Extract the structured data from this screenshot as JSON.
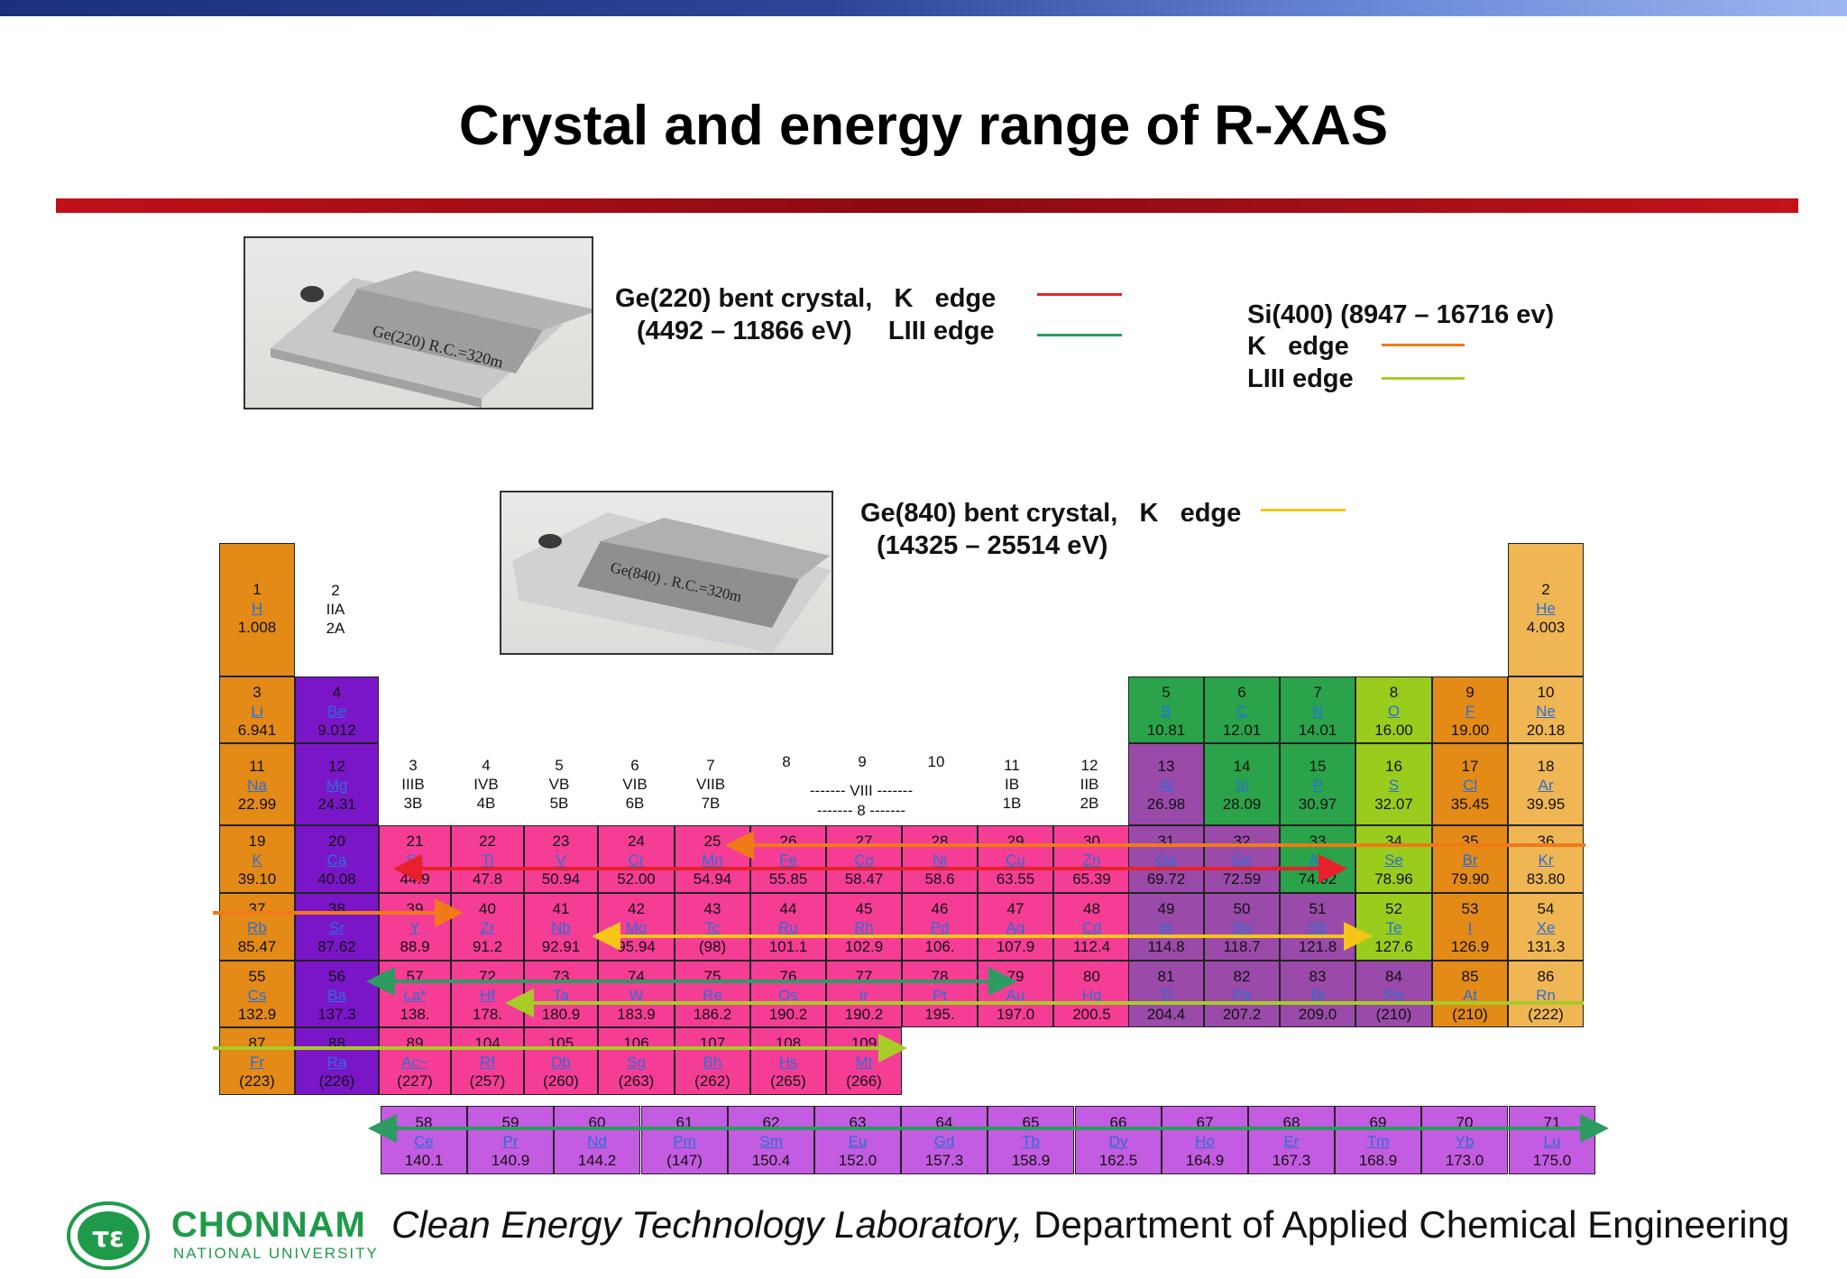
{
  "slide": {
    "title": "Crystal and energy range of R-XAS"
  },
  "crystals": {
    "ge220": {
      "line1": "Ge(220) bent crystal,   K   edge",
      "line2": "(4492 – 11866 eV)     LIII edge",
      "photo_text": "Ge(220)  R.C.=320m"
    },
    "ge840": {
      "line1": "Ge(840) bent crystal,   K   edge",
      "line2": "(14325 – 25514 eV)",
      "photo_text": "Ge(840) . R.C.=320m"
    },
    "si400": {
      "line1": "Si(400) (8947 – 16716 ev)",
      "line2": "K   edge",
      "line3": "LIII edge"
    }
  },
  "legend_colors": {
    "ge220_k": "#e8202a",
    "ge220_liii": "#2e9b62",
    "si400_k": "#f07a18",
    "si400_liii": "#a8cc26",
    "ge840_k": "#f5c518"
  },
  "group_headers": {
    "g2": [
      "2",
      "IIA",
      "2A"
    ],
    "g3": [
      "3",
      "IIIB",
      "3B"
    ],
    "g4": [
      "4",
      "IVB",
      "4B"
    ],
    "g5": [
      "5",
      "VB",
      "5B"
    ],
    "g6": [
      "6",
      "VIB",
      "6B"
    ],
    "g7": [
      "7",
      "VIIB",
      "7B"
    ],
    "g8": "8",
    "g9": "9",
    "g10": "10",
    "viii_a": "------- VIII -------",
    "viii_b": "------- 8 -------",
    "g11": [
      "11",
      "IB",
      "1B"
    ],
    "g12": [
      "12",
      "IIB",
      "2B"
    ]
  },
  "elements": [
    {
      "n": "1",
      "s": "H",
      "m": "1.008",
      "c": "orange",
      "col": 1,
      "row": 1
    },
    {
      "n": "2",
      "s": "He",
      "m": "4.003",
      "c": "lightorange",
      "col": 18,
      "row": 1
    },
    {
      "n": "3",
      "s": "Li",
      "m": "6.941",
      "c": "orange",
      "col": 1,
      "row": 2
    },
    {
      "n": "4",
      "s": "Be",
      "m": "9.012",
      "c": "purple",
      "col": 2,
      "row": 2
    },
    {
      "n": "5",
      "s": "B",
      "m": "10.81",
      "c": "green",
      "col": 13,
      "row": 2
    },
    {
      "n": "6",
      "s": "C",
      "m": "12.01",
      "c": "green",
      "col": 14,
      "row": 2
    },
    {
      "n": "7",
      "s": "N",
      "m": "14.01",
      "c": "green",
      "col": 15,
      "row": 2
    },
    {
      "n": "8",
      "s": "O",
      "m": "16.00",
      "c": "lime",
      "col": 16,
      "row": 2
    },
    {
      "n": "9",
      "s": "F",
      "m": "19.00",
      "c": "orange",
      "col": 17,
      "row": 2
    },
    {
      "n": "10",
      "s": "Ne",
      "m": "20.18",
      "c": "lightorange",
      "col": 18,
      "row": 2
    },
    {
      "n": "11",
      "s": "Na",
      "m": "22.99",
      "c": "orange",
      "col": 1,
      "row": 3
    },
    {
      "n": "12",
      "s": "Mg",
      "m": "24.31",
      "c": "purple",
      "col": 2,
      "row": 3
    },
    {
      "n": "13",
      "s": "Al",
      "m": "26.98",
      "c": "mauve",
      "col": 13,
      "row": 3
    },
    {
      "n": "14",
      "s": "Si",
      "m": "28.09",
      "c": "green",
      "col": 14,
      "row": 3
    },
    {
      "n": "15",
      "s": "P",
      "m": "30.97",
      "c": "green",
      "col": 15,
      "row": 3
    },
    {
      "n": "16",
      "s": "S",
      "m": "32.07",
      "c": "lime",
      "col": 16,
      "row": 3
    },
    {
      "n": "17",
      "s": "Cl",
      "m": "35.45",
      "c": "orange",
      "col": 17,
      "row": 3
    },
    {
      "n": "18",
      "s": "Ar",
      "m": "39.95",
      "c": "lightorange",
      "col": 18,
      "row": 3
    },
    {
      "n": "19",
      "s": "K",
      "m": "39.10",
      "c": "orange",
      "col": 1,
      "row": 4
    },
    {
      "n": "20",
      "s": "Ca",
      "m": "40.08",
      "c": "purple",
      "col": 2,
      "row": 4
    },
    {
      "n": "21",
      "s": "Sc",
      "m": "44.9",
      "c": "pink",
      "col": 3,
      "row": 4
    },
    {
      "n": "22",
      "s": "Ti",
      "m": "47.8",
      "c": "pink",
      "col": 4,
      "row": 4
    },
    {
      "n": "23",
      "s": "V",
      "m": "50.94",
      "c": "pink",
      "col": 5,
      "row": 4
    },
    {
      "n": "24",
      "s": "Cr",
      "m": "52.00",
      "c": "pink",
      "col": 6,
      "row": 4
    },
    {
      "n": "25",
      "s": "Mn",
      "m": "54.94",
      "c": "pink",
      "col": 7,
      "row": 4
    },
    {
      "n": "26",
      "s": "Fe",
      "m": "55.85",
      "c": "pink",
      "col": 8,
      "row": 4
    },
    {
      "n": "27",
      "s": "Co",
      "m": "58.47",
      "c": "pink",
      "col": 9,
      "row": 4
    },
    {
      "n": "28",
      "s": "Ni",
      "m": "58.6",
      "c": "pink",
      "col": 10,
      "row": 4
    },
    {
      "n": "29",
      "s": "Cu",
      "m": "63.55",
      "c": "pink",
      "col": 11,
      "row": 4
    },
    {
      "n": "30",
      "s": "Zn",
      "m": "65.39",
      "c": "pink",
      "col": 12,
      "row": 4
    },
    {
      "n": "31",
      "s": "Ga",
      "m": "69.72",
      "c": "mauve",
      "col": 13,
      "row": 4
    },
    {
      "n": "32",
      "s": "Ge",
      "m": "72.59",
      "c": "mauve",
      "col": 14,
      "row": 4
    },
    {
      "n": "33",
      "s": "As",
      "m": "74.92",
      "c": "green",
      "col": 15,
      "row": 4
    },
    {
      "n": "34",
      "s": "Se",
      "m": "78.96",
      "c": "lime",
      "col": 16,
      "row": 4
    },
    {
      "n": "35",
      "s": "Br",
      "m": "79.90",
      "c": "orange",
      "col": 17,
      "row": 4
    },
    {
      "n": "36",
      "s": "Kr",
      "m": "83.80",
      "c": "lightorange",
      "col": 18,
      "row": 4
    },
    {
      "n": "37",
      "s": "Rb",
      "m": "85.47",
      "c": "orange",
      "col": 1,
      "row": 5
    },
    {
      "n": "38",
      "s": "Sr",
      "m": "87.62",
      "c": "purple",
      "col": 2,
      "row": 5
    },
    {
      "n": "39",
      "s": "Y",
      "m": "88.9",
      "c": "pink",
      "col": 3,
      "row": 5
    },
    {
      "n": "40",
      "s": "Zr",
      "m": "91.2",
      "c": "pink",
      "col": 4,
      "row": 5
    },
    {
      "n": "41",
      "s": "Nb",
      "m": "92.91",
      "c": "pink",
      "col": 5,
      "row": 5
    },
    {
      "n": "42",
      "s": "Mo",
      "m": "95.94",
      "c": "pink",
      "col": 6,
      "row": 5
    },
    {
      "n": "43",
      "s": "Tc",
      "m": "(98)",
      "c": "pink",
      "col": 7,
      "row": 5
    },
    {
      "n": "44",
      "s": "Ru",
      "m": "101.1",
      "c": "pink",
      "col": 8,
      "row": 5
    },
    {
      "n": "45",
      "s": "Rh",
      "m": "102.9",
      "c": "pink",
      "col": 9,
      "row": 5
    },
    {
      "n": "46",
      "s": "Pd",
      "m": "106.",
      "c": "pink",
      "col": 10,
      "row": 5
    },
    {
      "n": "47",
      "s": "Ag",
      "m": "107.9",
      "c": "pink",
      "col": 11,
      "row": 5
    },
    {
      "n": "48",
      "s": "Cd",
      "m": "112.4",
      "c": "pink",
      "col": 12,
      "row": 5
    },
    {
      "n": "49",
      "s": "In",
      "m": "114.8",
      "c": "mauve",
      "col": 13,
      "row": 5
    },
    {
      "n": "50",
      "s": "Sn",
      "m": "118.7",
      "c": "mauve",
      "col": 14,
      "row": 5
    },
    {
      "n": "51",
      "s": "Sb",
      "m": "121.8",
      "c": "mauve",
      "col": 15,
      "row": 5
    },
    {
      "n": "52",
      "s": "Te",
      "m": "127.6",
      "c": "lime",
      "col": 16,
      "row": 5
    },
    {
      "n": "53",
      "s": "I",
      "m": "126.9",
      "c": "orange",
      "col": 17,
      "row": 5
    },
    {
      "n": "54",
      "s": "Xe",
      "m": "131.3",
      "c": "lightorange",
      "col": 18,
      "row": 5
    },
    {
      "n": "55",
      "s": "Cs",
      "m": "132.9",
      "c": "orange",
      "col": 1,
      "row": 6
    },
    {
      "n": "56",
      "s": "Ba",
      "m": "137.3",
      "c": "purple",
      "col": 2,
      "row": 6
    },
    {
      "n": "57",
      "s": "La*",
      "m": "138.",
      "c": "pink",
      "col": 3,
      "row": 6
    },
    {
      "n": "72",
      "s": "Hf",
      "m": "178.",
      "c": "pink",
      "col": 4,
      "row": 6
    },
    {
      "n": "73",
      "s": "Ta",
      "m": "180.9",
      "c": "pink",
      "col": 5,
      "row": 6
    },
    {
      "n": "74",
      "s": "W",
      "m": "183.9",
      "c": "pink",
      "col": 6,
      "row": 6
    },
    {
      "n": "75",
      "s": "Re",
      "m": "186.2",
      "c": "pink",
      "col": 7,
      "row": 6
    },
    {
      "n": "76",
      "s": "Os",
      "m": "190.2",
      "c": "pink",
      "col": 8,
      "row": 6
    },
    {
      "n": "77",
      "s": "Ir",
      "m": "190.2",
      "c": "pink",
      "col": 9,
      "row": 6
    },
    {
      "n": "78",
      "s": "Pt",
      "m": "195.",
      "c": "pink",
      "col": 10,
      "row": 6
    },
    {
      "n": "79",
      "s": "Au",
      "m": "197.0",
      "c": "pink",
      "col": 11,
      "row": 6
    },
    {
      "n": "80",
      "s": "Hg",
      "m": "200.5",
      "c": "pink",
      "col": 12,
      "row": 6
    },
    {
      "n": "81",
      "s": "Tl",
      "m": "204.4",
      "c": "mauve",
      "col": 13,
      "row": 6
    },
    {
      "n": "82",
      "s": "Pb",
      "m": "207.2",
      "c": "mauve",
      "col": 14,
      "row": 6
    },
    {
      "n": "83",
      "s": "Bi",
      "m": "209.0",
      "c": "mauve",
      "col": 15,
      "row": 6
    },
    {
      "n": "84",
      "s": "Po",
      "m": "(210)",
      "c": "mauve",
      "col": 16,
      "row": 6
    },
    {
      "n": "85",
      "s": "At",
      "m": "(210)",
      "c": "orange",
      "col": 17,
      "row": 6
    },
    {
      "n": "86",
      "s": "Rn",
      "m": "(222)",
      "c": "lightorange",
      "col": 18,
      "row": 6
    },
    {
      "n": "87",
      "s": "Fr",
      "m": "(223)",
      "c": "orange",
      "col": 1,
      "row": 7
    },
    {
      "n": "88",
      "s": "Ra",
      "m": "(226)",
      "c": "purple",
      "col": 2,
      "row": 7
    },
    {
      "n": "89",
      "s": "Ac~",
      "m": "(227)",
      "c": "pink",
      "col": 3,
      "row": 7
    },
    {
      "n": "104",
      "s": "Rf",
      "m": "(257)",
      "c": "pink",
      "col": 4,
      "row": 7
    },
    {
      "n": "105",
      "s": "Db",
      "m": "(260)",
      "c": "pink",
      "col": 5,
      "row": 7
    },
    {
      "n": "106",
      "s": "Sg",
      "m": "(263)",
      "c": "pink",
      "col": 6,
      "row": 7
    },
    {
      "n": "107",
      "s": "Bh",
      "m": "(262)",
      "c": "pink",
      "col": 7,
      "row": 7
    },
    {
      "n": "108",
      "s": "Hs",
      "m": "(265)",
      "c": "pink",
      "col": 8,
      "row": 7
    },
    {
      "n": "109",
      "s": "Mt",
      "m": "(266)",
      "c": "pink",
      "col": 9,
      "row": 7
    }
  ],
  "lanthanides": [
    {
      "n": "58",
      "s": "Ce",
      "m": "140.1"
    },
    {
      "n": "59",
      "s": "Pr",
      "m": "140.9"
    },
    {
      "n": "60",
      "s": "Nd",
      "m": "144.2"
    },
    {
      "n": "61",
      "s": "Pm",
      "m": "(147)"
    },
    {
      "n": "62",
      "s": "Sm",
      "m": "150.4"
    },
    {
      "n": "63",
      "s": "Eu",
      "m": "152.0"
    },
    {
      "n": "64",
      "s": "Gd",
      "m": "157.3"
    },
    {
      "n": "65",
      "s": "Tb",
      "m": "158.9"
    },
    {
      "n": "66",
      "s": "Dy",
      "m": "162.5"
    },
    {
      "n": "67",
      "s": "Ho",
      "m": "164.9"
    },
    {
      "n": "68",
      "s": "Er",
      "m": "167.3"
    },
    {
      "n": "69",
      "s": "Tm",
      "m": "168.9"
    },
    {
      "n": "70",
      "s": "Yb",
      "m": "173.0"
    },
    {
      "n": "71",
      "s": "Lu",
      "m": "175.0"
    }
  ],
  "cell_colors": {
    "orange": "#e38a17",
    "lightorange": "#f0b653",
    "purple": "#7a16c8",
    "green": "#2aa34a",
    "lime": "#99cc1c",
    "mauve": "#9a4aa8",
    "pink": "#f53d96",
    "lanth": "#c35ce0"
  },
  "footer": {
    "lab": "Clean Energy Technology Laboratory,",
    "dept": " Department of Applied Chemical Engineering",
    "logo_name": "CHONNAM",
    "logo_sub": "NATIONAL UNIVERSITY"
  }
}
